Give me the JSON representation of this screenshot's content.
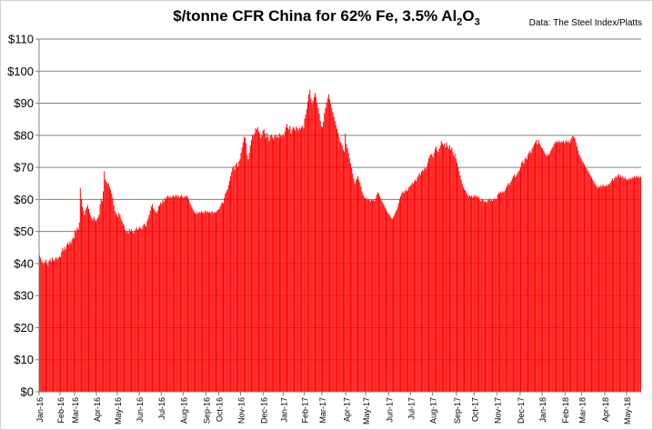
{
  "title": {
    "prefix": "$/tonne CFR China for 62% Fe, 3.5% Al",
    "sub1": "2",
    "mid": "O",
    "sub2": "3"
  },
  "source": "Data: The Steel Index/Platts",
  "colors": {
    "bar": "#ff0000",
    "grid": "#808080",
    "axis": "#808080",
    "background": "#ffffff"
  },
  "chart_data": {
    "type": "bar",
    "title": "$/tonne CFR China for 62% Fe, 3.5% Al2O3",
    "source": "Data: The Steel Index/Platts",
    "xlabel": "",
    "ylabel": "",
    "ylim": [
      0,
      110
    ],
    "y_ticks": [
      "$0",
      "$10",
      "$20",
      "$30",
      "$40",
      "$50",
      "$60",
      "$70",
      "$80",
      "$90",
      "$100",
      "$110"
    ],
    "grid": true,
    "legend": "none",
    "x_tick_labels": [
      "Jan-16",
      "Feb-16",
      "Mar-16",
      "Apr-16",
      "May-16",
      "Jun-16",
      "Jul-16",
      "Aug-16",
      "Sep-16",
      "Oct-16",
      "Nov-16",
      "Dec-16",
      "Jan-17",
      "Feb-17",
      "Mar-17",
      "Apr-17",
      "May-17",
      "Jun-17",
      "Jul-17",
      "Aug-17",
      "Sep-17",
      "Oct-17",
      "Nov-17",
      "Dec-17",
      "Jan-18",
      "Feb-18",
      "Mar-18",
      "Apr-18",
      "May-18"
    ],
    "monthly_daily_values": [
      [
        42.5,
        41.8,
        41.0,
        40.2,
        39.8,
        40.5,
        41.2,
        40.0,
        39.5,
        40.8,
        41.5,
        40.6,
        41.9,
        41.2,
        40.8,
        41.5,
        42.0,
        41.3,
        41.8,
        42.2
      ],
      [
        42.0,
        43.5,
        44.8,
        44.0,
        45.2,
        44.5,
        45.8,
        46.5,
        45.9,
        47.0,
        46.3,
        47.5,
        48.2,
        47.8
      ],
      [
        50.5,
        49.8,
        51.2,
        50.6,
        52.8,
        63.5,
        60.2,
        57.8,
        56.5,
        55.2,
        56.8,
        57.5,
        58.2,
        57.0,
        55.8,
        54.9,
        54.2,
        53.6,
        54.5,
        53.8,
        53.2
      ],
      [
        53.8,
        54.5,
        55.2,
        58.5,
        60.2,
        59.5,
        62.5,
        68.8,
        66.2,
        65.5,
        64.8,
        65.2,
        63.9,
        63.0,
        61.8,
        60.5,
        58.2,
        56.5,
        55.8,
        55.2
      ],
      [
        54.5,
        55.8,
        55.2,
        54.0,
        53.2,
        52.5,
        51.8,
        50.5,
        49.8,
        50.2,
        49.5,
        50.8,
        49.9,
        50.6,
        50.1,
        49.5,
        50.2,
        50.8,
        51.2,
        50.5,
        50.9
      ],
      [
        51.5,
        51.0,
        50.8,
        51.8,
        52.5,
        52.0,
        51.5,
        53.2,
        54.0,
        55.2,
        56.5,
        57.8,
        58.5,
        57.2,
        56.8,
        56.2,
        55.8,
        56.5,
        57.8,
        58.2,
        59.0
      ],
      [
        58.5,
        59.8,
        59.2,
        60.5,
        60.1,
        60.8,
        61.2,
        60.6,
        61.0,
        60.4,
        60.9,
        61.3,
        60.7,
        61.1,
        61.5,
        60.8,
        61.2,
        60.5,
        60.9,
        61.4,
        60.8
      ],
      [
        60.5,
        61.0,
        60.8,
        61.2,
        60.6,
        59.8,
        58.9,
        58.2,
        57.5,
        56.8,
        56.2,
        55.8,
        55.5,
        56.0,
        55.6,
        56.2,
        55.8,
        56.4,
        56.0,
        55.7,
        56.1,
        56.6
      ],
      [
        56.0,
        56.3,
        55.9,
        56.2,
        55.7,
        56.4,
        56.0,
        55.8,
        56.2,
        55.9,
        56.5,
        56.8
      ],
      [
        57.0,
        57.8,
        58.5,
        59.2,
        58.8,
        60.5,
        61.8,
        62.5,
        63.2,
        64.5,
        65.8,
        67.2,
        68.5,
        69.8,
        70.5,
        69.2,
        70.8,
        71.5,
        70.2,
        71.8,
        72.5
      ],
      [
        74.5,
        76.2,
        77.8,
        79.5,
        79.2,
        77.6,
        73.8,
        72.5,
        74.5,
        76.8,
        78.5,
        80.2,
        79.8,
        80.5,
        82.2,
        81.8,
        82.5,
        81.2,
        80.5,
        79.2,
        80.0,
        81.5
      ],
      [
        81.8,
        80.5,
        79.2,
        80.8,
        79.5,
        78.2,
        79.8,
        80.2,
        79.5,
        78.8,
        79.6,
        80.2,
        79.4,
        80.0,
        79.2,
        80.6,
        80.0,
        79.6,
        80.2
      ],
      [
        79.8,
        81.2,
        82.5,
        83.5,
        82.2,
        81.8,
        82.9,
        80.5,
        81.8,
        82.6,
        82.1,
        81.5,
        82.8,
        82.2,
        81.6,
        82.4,
        81.9,
        82.5,
        83.0,
        82.2
      ],
      [
        85.2,
        86.5,
        88.2,
        90.5,
        92.8,
        94.2,
        91.5,
        89.8,
        90.8,
        92.0,
        93.2,
        91.8,
        90.2,
        88.5,
        86.8,
        84.5,
        82.8
      ],
      [
        82.5,
        84.2,
        86.8,
        88.5,
        90.2,
        91.5,
        92.8,
        91.2,
        90.0,
        88.5,
        87.2,
        85.8,
        84.5,
        83.2,
        82.0,
        80.8,
        79.5,
        78.2,
        77.6,
        76.8,
        75.5,
        74.8,
        80.5
      ],
      [
        77.2,
        76.0,
        74.5,
        72.8,
        71.2,
        69.8,
        68.2,
        66.5,
        65.0,
        65.8,
        66.5,
        67.2,
        66.0,
        65.2,
        64.0,
        62.5,
        61.5,
        60.8,
        60.2
      ],
      [
        60.5,
        59.8,
        60.2,
        59.9,
        59.4,
        60.1,
        59.7,
        60.0,
        59.5,
        60.3,
        61.5,
        62.2,
        61.8,
        61.0,
        60.2,
        59.6,
        58.8,
        58.2,
        57.5,
        56.9,
        56.2,
        55.6
      ],
      [
        55.5,
        54.8,
        54.2,
        53.9,
        54.5,
        55.2,
        55.9,
        56.6,
        57.5,
        58.8,
        60.2,
        61.0,
        61.8,
        62.5,
        61.9,
        62.6,
        63.2,
        62.5,
        63.0,
        63.8,
        64.2
      ],
      [
        64.5,
        65.2,
        64.8,
        65.6,
        66.2,
        65.8,
        66.8,
        67.5,
        68.2,
        67.6,
        68.6,
        69.2,
        68.9,
        69.8,
        69.5,
        70.2,
        71.5,
        72.8,
        73.6,
        74.2,
        74.0
      ],
      [
        73.2,
        74.5,
        75.8,
        76.5,
        75.2,
        74.8,
        75.9,
        76.8,
        78.2,
        77.5,
        76.8,
        77.5,
        76.2,
        77.8,
        76.5,
        75.8,
        76.9,
        75.5,
        76.2,
        74.8,
        73.5,
        74.2,
        72.8
      ],
      [
        71.5,
        70.2,
        68.8,
        67.5,
        66.2,
        64.8,
        63.9,
        63.2,
        62.8,
        62.2,
        61.6,
        60.9,
        61.4,
        60.8,
        61.2,
        60.6,
        61.0
      ],
      [
        61.5,
        60.8,
        61.2,
        60.5,
        60.9,
        59.8,
        59.5,
        60.2,
        59.8,
        59.2,
        59.6,
        59.0,
        59.4,
        59.8,
        60.2,
        59.6,
        60.0,
        59.5,
        59.9,
        60.4,
        59.8,
        60.2
      ],
      [
        61.5,
        62.2,
        61.8,
        62.5,
        62.0,
        62.6,
        62.2,
        62.8,
        63.5,
        64.2,
        65.0,
        64.5,
        65.2,
        65.8,
        66.5,
        67.2,
        67.8,
        66.9,
        67.5,
        68.2,
        68.8,
        69.2
      ],
      [
        70.2,
        71.5,
        72.0,
        71.2,
        72.6,
        73.2,
        72.5,
        73.9,
        74.6,
        75.2,
        74.5,
        75.8,
        76.5,
        77.2,
        77.8,
        78.5,
        77.2,
        78.6,
        77.5,
        76.8,
        76.2
      ],
      [
        75.8,
        75.2,
        74.6,
        74.0,
        73.5,
        74.2,
        73.8,
        74.5,
        75.2,
        75.9,
        76.5,
        77.2,
        78.0,
        77.6,
        78.2,
        77.8,
        78.3,
        77.6,
        78.1,
        77.9,
        78.4,
        77.5
      ],
      [
        78.0,
        78.5,
        77.8,
        78.2,
        77.6,
        78.4,
        79.2,
        79.8,
        79.5,
        79.0,
        77.8,
        76.5,
        75.2,
        74.0,
        73.5,
        72.8
      ],
      [
        72.0,
        71.5,
        70.9,
        70.2,
        69.8,
        69.2,
        68.6,
        68.0,
        67.4,
        66.8,
        66.2,
        65.6,
        65.0,
        64.5,
        64.0,
        63.6,
        64.2,
        63.8,
        64.5,
        64.0,
        64.6,
        64.2
      ],
      [
        64.0,
        64.5,
        64.2,
        64.8,
        64.6,
        65.2,
        65.8,
        66.5,
        65.9,
        66.6,
        67.2,
        66.8,
        67.5,
        67.9,
        66.9,
        67.6,
        66.8,
        67.2,
        66.5,
        67.0,
        66.3
      ],
      [
        66.0,
        66.5,
        66.2,
        66.8,
        66.4,
        67.0,
        66.6,
        67.2,
        66.8,
        67.4,
        66.9,
        67.3,
        66.7,
        67.1
      ]
    ]
  }
}
